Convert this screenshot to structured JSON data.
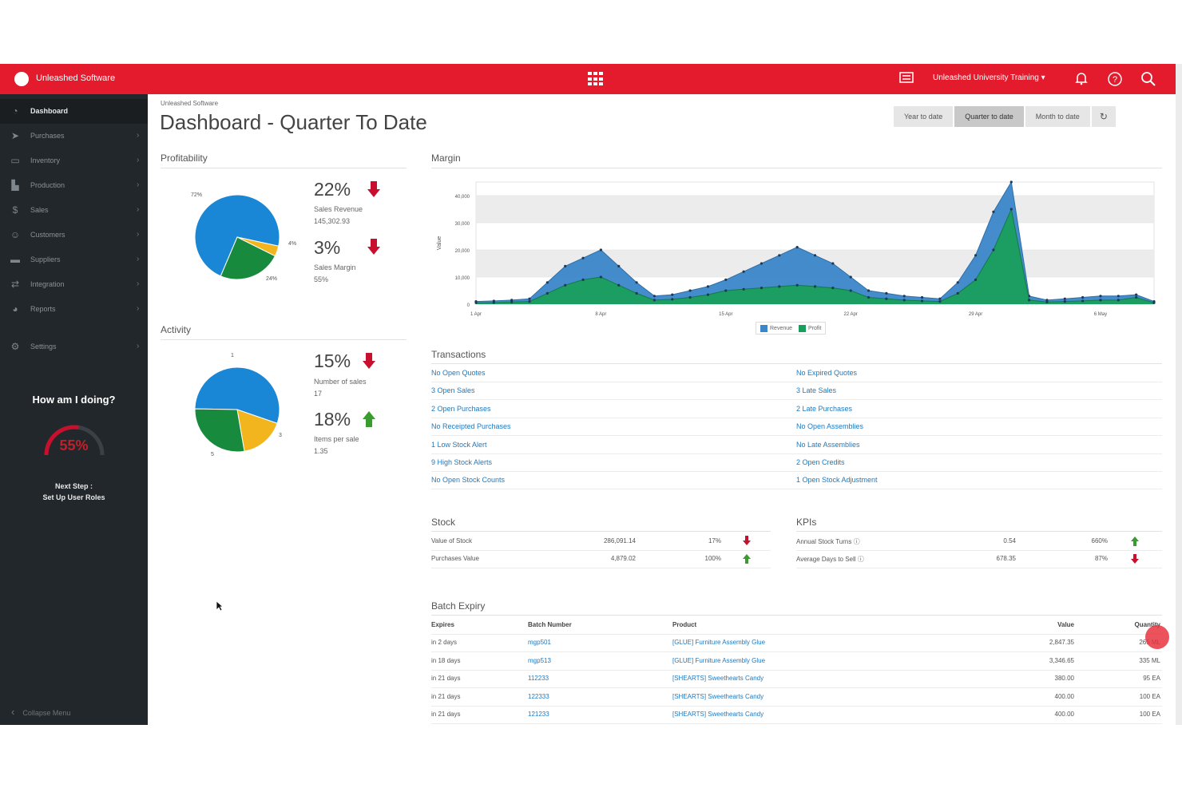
{
  "topbar": {
    "brand": "Unleashed Software",
    "account": "Unleashed University Training ▾",
    "icons": [
      "apps-grid-icon",
      "news-icon",
      "bell-icon",
      "help-icon",
      "search-icon"
    ]
  },
  "sidebar": {
    "items": [
      {
        "label": "Dashboard",
        "icon": "dashboard-icon",
        "active": true
      },
      {
        "label": "Purchases",
        "icon": "purchases-icon"
      },
      {
        "label": "Inventory",
        "icon": "inventory-icon"
      },
      {
        "label": "Production",
        "icon": "production-icon"
      },
      {
        "label": "Sales",
        "icon": "sales-icon"
      },
      {
        "label": "Customers",
        "icon": "customers-icon"
      },
      {
        "label": "Suppliers",
        "icon": "suppliers-icon"
      },
      {
        "label": "Integration",
        "icon": "integration-icon"
      },
      {
        "label": "Reports",
        "icon": "reports-icon"
      },
      {
        "label": "Settings",
        "icon": "settings-icon"
      }
    ],
    "how_doing": "How am I doing?",
    "gauge_value": "55%",
    "gauge_fraction": 0.55,
    "next_step_line1": "Next Step :",
    "next_step_line2": "Set Up User Roles",
    "collapse": "Collapse Menu"
  },
  "header": {
    "breadcrumb": "Unleashed Software",
    "title": "Dashboard - Quarter To Date",
    "ranges": [
      "Year to date",
      "Quarter to date",
      "Month to date"
    ],
    "active_range": "Quarter to date"
  },
  "profitability": {
    "title": "Profitability",
    "pie_labels": [
      "72%",
      "4%",
      "24%"
    ],
    "pie_values": [
      72,
      4,
      24
    ],
    "kpi1": {
      "pct": "22%",
      "trend": "down",
      "label": "Sales Revenue",
      "value": "145,302.93"
    },
    "kpi2": {
      "pct": "3%",
      "trend": "down",
      "label": "Sales Margin",
      "value": "55%"
    }
  },
  "activity": {
    "title": "Activity",
    "pie_labels": [
      "1",
      "3",
      "5"
    ],
    "pie_values": [
      55,
      17,
      28
    ],
    "kpi1": {
      "pct": "15%",
      "trend": "down",
      "label": "Number of sales",
      "value": "17"
    },
    "kpi2": {
      "pct": "18%",
      "trend": "up",
      "label": "Items per sale",
      "value": "1.35"
    }
  },
  "margin": {
    "title": "Margin"
  },
  "chart_data": {
    "type": "area",
    "title": "Margin",
    "ylabel": "Value",
    "xlabel": "",
    "ylim": [
      0,
      45000
    ],
    "y_ticks": [
      "0",
      "10,000",
      "20,000",
      "30,000",
      "40,000"
    ],
    "x_tick_labels": [
      "1 Apr",
      "8 Apr",
      "15 Apr",
      "22 Apr",
      "29 Apr",
      "6 May"
    ],
    "x": [
      "1 Apr",
      "2 Apr",
      "3 Apr",
      "4 Apr",
      "5 Apr",
      "6 Apr",
      "7 Apr",
      "8 Apr",
      "9 Apr",
      "10 Apr",
      "11 Apr",
      "12 Apr",
      "13 Apr",
      "14 Apr",
      "15 Apr",
      "16 Apr",
      "17 Apr",
      "18 Apr",
      "19 Apr",
      "20 Apr",
      "21 Apr",
      "22 Apr",
      "23 Apr",
      "24 Apr",
      "25 Apr",
      "26 Apr",
      "27 Apr",
      "28 Apr",
      "29 Apr",
      "30 Apr",
      "1 May",
      "2 May",
      "3 May",
      "4 May",
      "5 May",
      "6 May",
      "7 May",
      "8 May",
      "9 May"
    ],
    "series": [
      {
        "name": "Revenue",
        "color": "#3a86c8",
        "values": [
          1000,
          1200,
          1500,
          2000,
          8000,
          14000,
          17000,
          20000,
          14000,
          8000,
          3000,
          3500,
          5000,
          6500,
          9000,
          12000,
          15000,
          18000,
          21000,
          18000,
          15000,
          10000,
          5000,
          4000,
          3000,
          2500,
          2000,
          8000,
          18000,
          34000,
          45000,
          3000,
          1500,
          2000,
          2500,
          3000,
          3000,
          3500,
          1000
        ]
      },
      {
        "name": "Profit",
        "color": "#1a9e5c",
        "values": [
          500,
          600,
          800,
          1000,
          4000,
          7000,
          9000,
          10000,
          7000,
          4000,
          1500,
          1800,
          2500,
          3500,
          5000,
          5500,
          6000,
          6500,
          7000,
          6500,
          6000,
          5000,
          2500,
          2000,
          1500,
          1200,
          1000,
          4000,
          9000,
          20000,
          35000,
          1500,
          800,
          1000,
          1200,
          1500,
          1500,
          2500,
          500
        ]
      }
    ],
    "legend": "bottom-center",
    "grid": true
  },
  "transactions": {
    "title": "Transactions",
    "left": [
      "No Open Quotes",
      "3 Open Sales",
      "2 Open Purchases",
      "No Receipted Purchases",
      "1 Low Stock Alert",
      "9 High Stock Alerts",
      "No Open Stock Counts"
    ],
    "right": [
      "No Expired Quotes",
      "3 Late Sales",
      "2 Late Purchases",
      "No Open Assemblies",
      "No Late Assemblies",
      "2 Open Credits",
      "1 Open Stock Adjustment"
    ]
  },
  "stock": {
    "title": "Stock",
    "rows": [
      {
        "label": "Value of Stock",
        "value": "286,091.14",
        "pct": "17%",
        "trend": "down"
      },
      {
        "label": "Purchases Value",
        "value": "4,879.02",
        "pct": "100%",
        "trend": "up"
      }
    ]
  },
  "kpis": {
    "title": "KPIs",
    "rows": [
      {
        "label": "Annual Stock Turns ⓘ",
        "value": "0.54",
        "pct": "660%",
        "trend": "up"
      },
      {
        "label": "Average Days to Sell ⓘ",
        "value": "678.35",
        "pct": "87%",
        "trend": "down"
      }
    ]
  },
  "batch": {
    "title": "Batch Expiry",
    "headers": [
      "Expires",
      "Batch Number",
      "Product",
      "Value",
      "Quantity"
    ],
    "rows": [
      [
        "in 2 days",
        "mgp501",
        "[GLUE] Furniture Assembly Glue",
        "2,847.35",
        "265 ML"
      ],
      [
        "in 18 days",
        "mgp513",
        "[GLUE] Furniture Assembly Glue",
        "3,346.65",
        "335 ML"
      ],
      [
        "in 21 days",
        "112233",
        "[SHEARTS] Sweethearts Candy",
        "380.00",
        "95 EA"
      ],
      [
        "in 21 days",
        "122333",
        "[SHEARTS] Sweethearts Candy",
        "400.00",
        "100 EA"
      ],
      [
        "in 21 days",
        "121233",
        "[SHEARTS] Sweethearts Candy",
        "400.00",
        "100 EA"
      ]
    ]
  },
  "colors": {
    "brand_red": "#e31b2c",
    "sidebar": "#22272b",
    "link": "#1e79c0",
    "down": "#c8102e",
    "up": "#3a9b2e",
    "pie_blue": "#1a86d6",
    "pie_green": "#188a3e",
    "pie_yellow": "#f2b51d"
  }
}
